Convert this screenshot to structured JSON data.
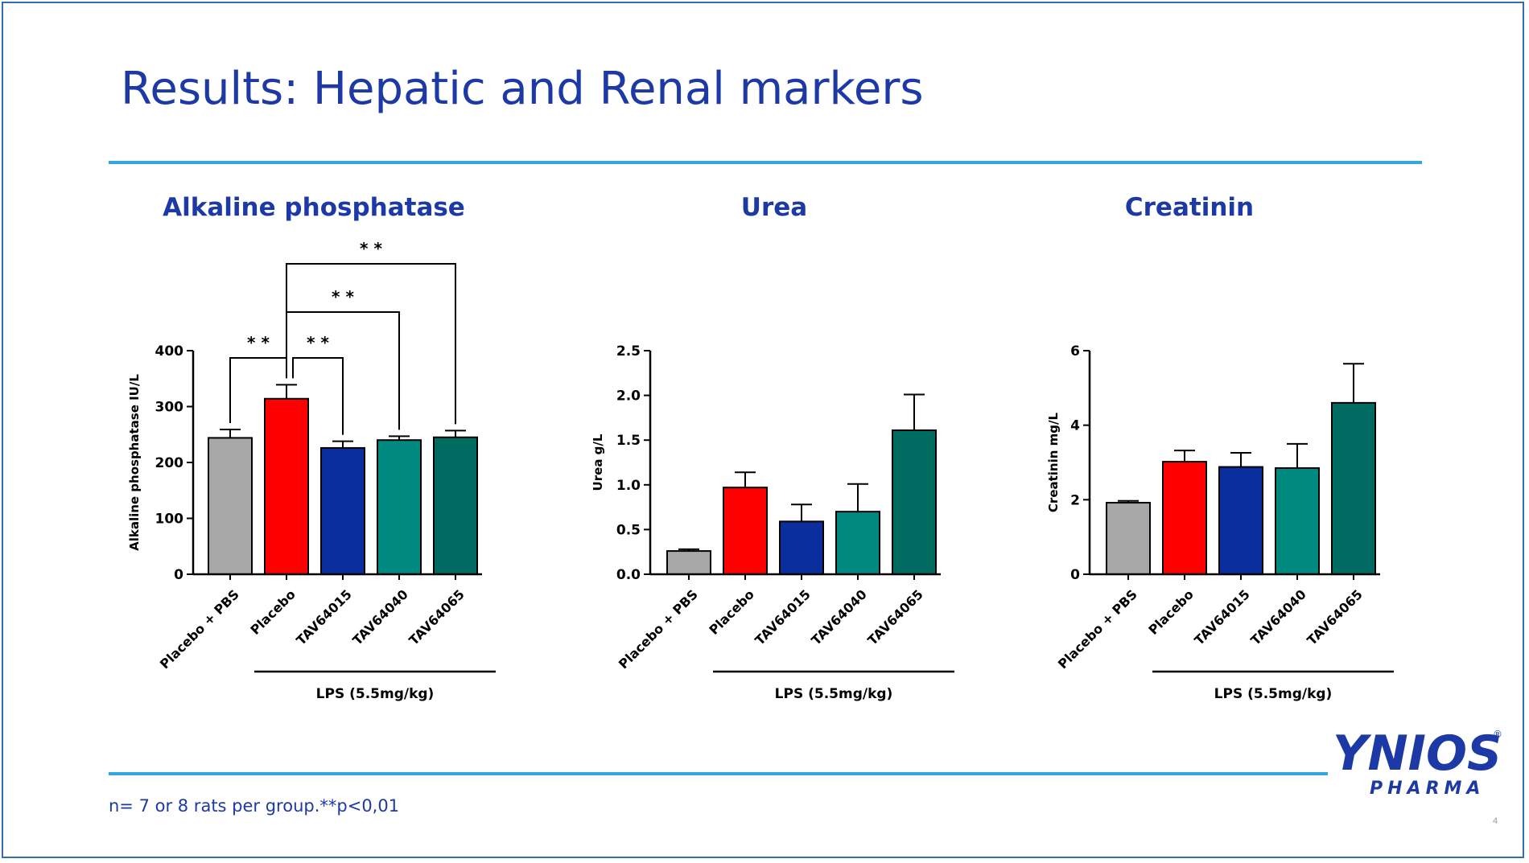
{
  "slide": {
    "title": "Results: Hepatic and Renal markers",
    "footnote": "n= 7 or 8 rats per group.**p<0,01",
    "page_number": "4",
    "logo_text": "YNIOS",
    "logo_sub": "PHARMA",
    "logo_mark": "®"
  },
  "colors": {
    "title": "#1d39a6",
    "rule": "#34a6e3"
  },
  "chart_data": [
    {
      "type": "bar",
      "title": "Alkaline phosphatase",
      "ylabel": "Alkaline phosphatase IU/L",
      "ylim": [
        0,
        400
      ],
      "yticks": [
        0,
        100,
        200,
        300,
        400
      ],
      "categories": [
        "Placebo + PBS",
        "Placebo",
        "TAV64015",
        "TAV64040",
        "TAV64065"
      ],
      "values": [
        244,
        314,
        226,
        240,
        245
      ],
      "errors": [
        15,
        25,
        12,
        7,
        12
      ],
      "colors": [
        "#a8a8a8",
        "#ff0000",
        "#0a2e9c",
        "#00897f",
        "#006b61"
      ],
      "group_label": "LPS (5.5mg/kg)",
      "significance": [
        {
          "from": 0,
          "to": 1,
          "label": "* *"
        },
        {
          "from": 1,
          "to": 2,
          "label": "* *"
        },
        {
          "from": 1,
          "to": 3,
          "label": "* *"
        },
        {
          "from": 1,
          "to": 4,
          "label": "* *"
        }
      ]
    },
    {
      "type": "bar",
      "title": "Urea",
      "ylabel": "Urea g/L",
      "ylim": [
        0,
        2.5
      ],
      "yticks": [
        0,
        0.5,
        1,
        1.5,
        2,
        2.5
      ],
      "tick_decimals": 1,
      "categories": [
        "Placebo + PBS",
        "Placebo",
        "TAV64015",
        "TAV64040",
        "TAV64065"
      ],
      "values": [
        0.26,
        0.97,
        0.59,
        0.7,
        1.61
      ],
      "errors": [
        0.02,
        0.17,
        0.19,
        0.31,
        0.4
      ],
      "colors": [
        "#a8a8a8",
        "#ff0000",
        "#0a2e9c",
        "#00897f",
        "#006b61"
      ],
      "group_label": "LPS (5.5mg/kg)",
      "significance": []
    },
    {
      "type": "bar",
      "title": "Creatinin",
      "ylabel": "Creatinin mg/L",
      "ylim": [
        0,
        6
      ],
      "yticks": [
        0,
        2,
        4,
        6
      ],
      "tick_decimals": 0,
      "categories": [
        "Placebo + PBS",
        "Placebo",
        "TAV64015",
        "TAV64040",
        "TAV64065"
      ],
      "values": [
        1.92,
        3.02,
        2.88,
        2.85,
        4.6
      ],
      "errors": [
        0.05,
        0.3,
        0.38,
        0.65,
        1.05
      ],
      "colors": [
        "#a8a8a8",
        "#ff0000",
        "#0a2e9c",
        "#00897f",
        "#006b61"
      ],
      "group_label": "LPS (5.5mg/kg)",
      "significance": []
    }
  ]
}
